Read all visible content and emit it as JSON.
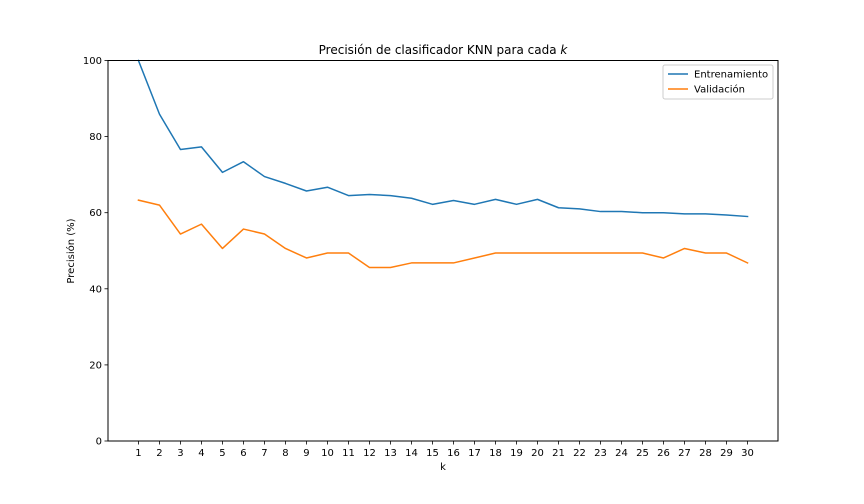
{
  "chart_data": {
    "type": "line",
    "title": "Precisión de clasificador KNN para cada k",
    "title_main": "Precisión de clasificador KNN para cada ",
    "title_var": "k",
    "xlabel": "k",
    "ylabel": "Precisión (%)",
    "ylim": [
      0,
      100
    ],
    "yticks": [
      0,
      20,
      40,
      60,
      80,
      100
    ],
    "x": [
      1,
      2,
      3,
      4,
      5,
      6,
      7,
      8,
      9,
      10,
      11,
      12,
      13,
      14,
      15,
      16,
      17,
      18,
      19,
      20,
      21,
      22,
      23,
      24,
      25,
      26,
      27,
      28,
      29,
      30
    ],
    "xlim": [
      -0.45,
      31.45
    ],
    "grid": false,
    "legend_position": "top-right",
    "series": [
      {
        "name": "Entrenamiento",
        "color": "#1f77b4",
        "values": [
          100,
          85.9,
          76.6,
          77.3,
          70.6,
          73.4,
          69.5,
          67.7,
          65.7,
          66.7,
          64.5,
          64.8,
          64.5,
          63.8,
          62.2,
          63.2,
          62.2,
          63.5,
          62.2,
          63.5,
          61.3,
          61.0,
          60.3,
          60.3,
          60.0,
          60.0,
          59.7,
          59.7,
          59.4,
          59.0
        ]
      },
      {
        "name": "Validación",
        "color": "#ff7f0e",
        "values": [
          63.3,
          62.0,
          54.4,
          57.0,
          50.6,
          55.7,
          54.4,
          50.6,
          48.1,
          49.4,
          49.4,
          45.6,
          45.6,
          46.8,
          46.8,
          46.8,
          48.1,
          49.4,
          49.4,
          49.4,
          49.4,
          49.4,
          49.4,
          49.4,
          49.4,
          48.1,
          50.6,
          49.4,
          49.4,
          46.8
        ]
      }
    ]
  }
}
